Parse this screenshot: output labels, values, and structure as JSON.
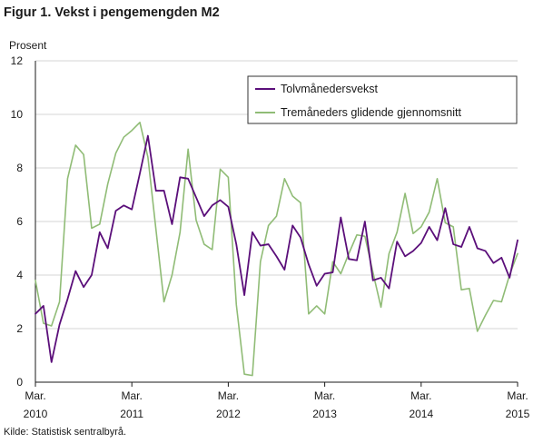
{
  "page": {
    "title": "Figur 1. Vekst i pengemengden M2",
    "source": "Kilde: Statistisk sentralbyrå."
  },
  "chart_data": {
    "type": "line",
    "title": "Figur 1. Vekst i pengemengden M2",
    "ylabel": "Prosent",
    "xlabel": "",
    "ylim": [
      0,
      12
    ],
    "yticks": [
      0,
      2,
      4,
      6,
      8,
      10,
      12
    ],
    "x_start": "2010-03",
    "x_end": "2015-03",
    "xticks": [
      {
        "month": "Mar.",
        "year": "2010",
        "x": "2010-03"
      },
      {
        "month": "Mar.",
        "year": "2011",
        "x": "2011-03"
      },
      {
        "month": "Mar.",
        "year": "2012",
        "x": "2012-03"
      },
      {
        "month": "Mar.",
        "year": "2013",
        "x": "2013-03"
      },
      {
        "month": "Mar.",
        "year": "2014",
        "x": "2014-03"
      },
      {
        "month": "Mar.",
        "year": "2015",
        "x": "2015-03"
      }
    ],
    "grid": "horizontal",
    "legend_position": "top-right",
    "x": [
      "2010-03",
      "2010-04",
      "2010-05",
      "2010-06",
      "2010-07",
      "2010-08",
      "2010-09",
      "2010-10",
      "2010-11",
      "2010-12",
      "2011-01",
      "2011-02",
      "2011-03",
      "2011-04",
      "2011-05",
      "2011-06",
      "2011-07",
      "2011-08",
      "2011-09",
      "2011-10",
      "2011-11",
      "2011-12",
      "2012-01",
      "2012-02",
      "2012-03",
      "2012-04",
      "2012-05",
      "2012-06",
      "2012-07",
      "2012-08",
      "2012-09",
      "2012-10",
      "2012-11",
      "2012-12",
      "2013-01",
      "2013-02",
      "2013-03",
      "2013-04",
      "2013-05",
      "2013-06",
      "2013-07",
      "2013-08",
      "2013-09",
      "2013-10",
      "2013-11",
      "2013-12",
      "2014-01",
      "2014-02",
      "2014-03",
      "2014-04",
      "2014-05",
      "2014-06",
      "2014-07",
      "2014-08",
      "2014-09",
      "2014-10",
      "2014-11",
      "2014-12",
      "2015-01",
      "2015-02",
      "2015-03"
    ],
    "series": [
      {
        "name": "Tolvmånedersvekst",
        "color": "#5b0f7a",
        "values": [
          2.55,
          2.85,
          0.75,
          2.15,
          3.1,
          4.15,
          3.55,
          4.0,
          5.6,
          5.0,
          6.4,
          6.6,
          6.45,
          7.8,
          9.2,
          7.15,
          7.15,
          5.9,
          7.65,
          7.6,
          6.9,
          6.2,
          6.6,
          6.8,
          6.55,
          5.15,
          3.25,
          5.6,
          5.1,
          5.15,
          4.7,
          4.2,
          5.85,
          5.4,
          4.4,
          3.6,
          4.05,
          4.1,
          6.15,
          4.6,
          4.55,
          6.0,
          3.8,
          3.9,
          3.5,
          5.25,
          4.7,
          4.9,
          5.2,
          5.8,
          5.3,
          6.5,
          5.15,
          5.05,
          5.8,
          5.0,
          4.9,
          4.45,
          4.65,
          3.9,
          5.3
        ]
      },
      {
        "name": "Tremåneders glidende gjennomsnitt",
        "color": "#90bc76",
        "values": [
          3.8,
          2.2,
          2.1,
          3.0,
          7.6,
          8.85,
          8.5,
          5.75,
          5.9,
          7.4,
          8.55,
          9.15,
          9.4,
          9.7,
          8.4,
          5.7,
          3.0,
          4.0,
          5.6,
          8.7,
          6.05,
          5.15,
          4.95,
          7.95,
          7.65,
          2.9,
          0.3,
          0.25,
          4.5,
          5.85,
          6.2,
          7.6,
          6.95,
          6.7,
          2.55,
          2.85,
          2.55,
          4.5,
          4.05,
          4.8,
          5.5,
          5.45,
          4.1,
          2.8,
          4.8,
          5.6,
          7.05,
          5.55,
          5.8,
          6.35,
          7.6,
          5.95,
          5.8,
          3.45,
          3.5,
          1.9,
          2.5,
          3.05,
          3.0,
          4.0,
          4.8
        ]
      }
    ]
  }
}
